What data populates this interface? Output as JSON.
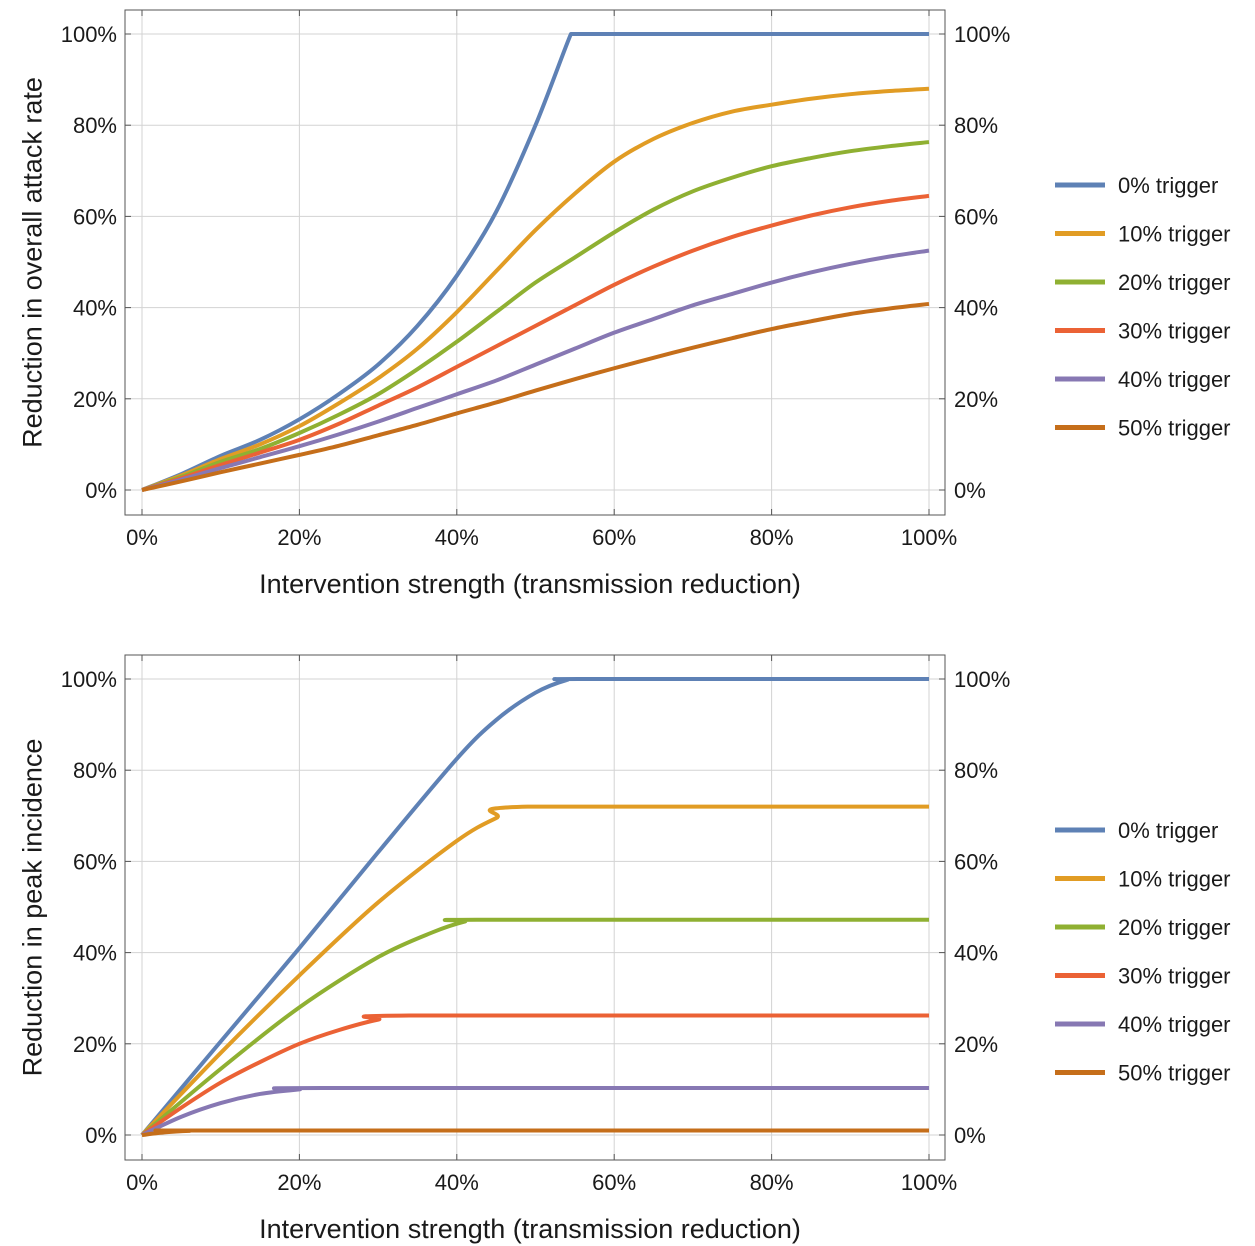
{
  "chart_data": [
    {
      "type": "line",
      "title": "",
      "xlabel": "Intervention strength (transmission reduction)",
      "ylabel": "Reduction in overall attack rate",
      "xlim": [
        0,
        100
      ],
      "ylim": [
        0,
        100
      ],
      "x_ticks": [
        "0%",
        "20%",
        "40%",
        "60%",
        "80%",
        "100%"
      ],
      "y_ticks": [
        "0%",
        "20%",
        "40%",
        "60%",
        "80%",
        "100%"
      ],
      "y_ticks_right": [
        "0%",
        "20%",
        "40%",
        "60%",
        "80%",
        "100%"
      ],
      "grid": true,
      "legend_position": "right",
      "x": [
        0,
        5,
        10,
        15,
        20,
        25,
        30,
        35,
        40,
        45,
        50,
        55,
        60,
        65,
        70,
        75,
        80,
        85,
        90,
        95,
        100
      ],
      "series": [
        {
          "name": "0% trigger",
          "color": "#5e81b5",
          "x": [
            0,
            5,
            10,
            15,
            20,
            25,
            30,
            35,
            40,
            45,
            50,
            54.5,
            55,
            60,
            65,
            70,
            75,
            80,
            85,
            90,
            95,
            100
          ],
          "values": [
            0,
            3.5,
            7.5,
            11,
            15.5,
            21,
            27.5,
            36,
            47,
            61,
            80,
            100,
            100,
            100,
            100,
            100,
            100,
            100,
            100,
            100,
            100,
            100
          ]
        },
        {
          "name": "10% trigger",
          "color": "#e19c24",
          "values": [
            0,
            3.2,
            6.8,
            10,
            14,
            19,
            24.5,
            31,
            39,
            48,
            57,
            65,
            72,
            77,
            80.5,
            83,
            84.5,
            85.8,
            86.8,
            87.5,
            88
          ]
        },
        {
          "name": "20% trigger",
          "color": "#8fb032",
          "values": [
            0,
            2.9,
            6.2,
            9,
            12.5,
            16.5,
            21,
            26.5,
            32.5,
            39,
            45.5,
            51,
            56.5,
            61.5,
            65.5,
            68.5,
            71,
            72.8,
            74.3,
            75.4,
            76.3
          ]
        },
        {
          "name": "30% trigger",
          "color": "#eb6235",
          "values": [
            0,
            2.6,
            5.5,
            8.2,
            11,
            14.5,
            18.5,
            22.5,
            27,
            31.5,
            36,
            40.5,
            45,
            49,
            52.5,
            55.5,
            58,
            60.2,
            62,
            63.4,
            64.5
          ]
        },
        {
          "name": "40% trigger",
          "color": "#8778b3",
          "values": [
            0,
            2.3,
            4.8,
            7.2,
            9.6,
            12.2,
            15,
            18,
            21,
            24,
            27.5,
            31,
            34.5,
            37.5,
            40.5,
            43,
            45.5,
            47.7,
            49.6,
            51.2,
            52.5
          ]
        },
        {
          "name": "50% trigger",
          "color": "#c56e1a",
          "values": [
            0,
            1.9,
            3.9,
            5.8,
            7.7,
            9.7,
            12,
            14.3,
            16.8,
            19.2,
            21.8,
            24.3,
            26.7,
            29,
            31.2,
            33.3,
            35.3,
            37,
            38.6,
            39.8,
            40.8
          ]
        }
      ]
    },
    {
      "type": "line",
      "title": "",
      "xlabel": "Intervention strength (transmission reduction)",
      "ylabel": "Reduction in peak incidence",
      "xlim": [
        0,
        100
      ],
      "ylim": [
        0,
        100
      ],
      "x_ticks": [
        "0%",
        "20%",
        "40%",
        "60%",
        "80%",
        "100%"
      ],
      "y_ticks": [
        "0%",
        "20%",
        "40%",
        "60%",
        "80%",
        "100%"
      ],
      "y_ticks_right": [
        "0%",
        "20%",
        "40%",
        "60%",
        "80%",
        "100%"
      ],
      "grid": true,
      "legend_position": "right",
      "series": [
        {
          "name": "0% trigger",
          "color": "#5e81b5",
          "x": [
            0,
            10,
            20,
            30,
            40,
            45,
            50,
            54,
            56,
            100
          ],
          "values": [
            0,
            20.5,
            41,
            62,
            82.5,
            91,
            97,
            99.8,
            100,
            100
          ]
        },
        {
          "name": "10% trigger",
          "color": "#e19c24",
          "x": [
            0,
            10,
            20,
            30,
            40,
            45,
            49,
            100
          ],
          "values": [
            0,
            18,
            35,
            51,
            64.5,
            69.5,
            72,
            72
          ]
        },
        {
          "name": "20% trigger",
          "color": "#8fb032",
          "x": [
            0,
            10,
            20,
            30,
            37,
            41,
            43,
            100
          ],
          "values": [
            0,
            14.5,
            28,
            39,
            44.5,
            46.8,
            47.2,
            47.2
          ]
        },
        {
          "name": "30% trigger",
          "color": "#eb6235",
          "x": [
            0,
            5,
            10,
            15,
            20,
            25,
            30,
            34,
            100
          ],
          "values": [
            0,
            6,
            11.5,
            16,
            20,
            23,
            25.3,
            26.2,
            26.2
          ]
        },
        {
          "name": "40% trigger",
          "color": "#8778b3",
          "x": [
            0,
            5,
            10,
            15,
            20,
            23,
            100
          ],
          "values": [
            0,
            4,
            7,
            9,
            10,
            10.3,
            10.3
          ]
        },
        {
          "name": "50% trigger",
          "color": "#c56e1a",
          "x": [
            0,
            3,
            6,
            9,
            100
          ],
          "values": [
            0,
            0.6,
            0.9,
            1,
            1
          ]
        }
      ]
    }
  ]
}
